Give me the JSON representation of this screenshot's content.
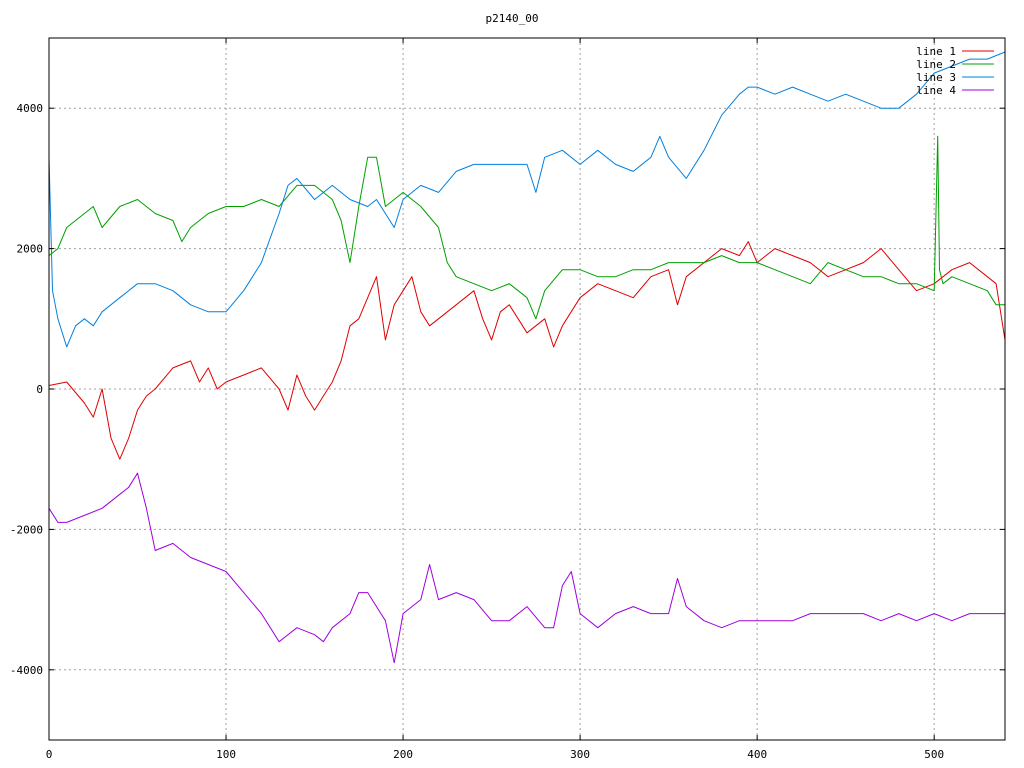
{
  "chart_data": {
    "type": "line",
    "title": "p2140_00",
    "xlabel": "",
    "ylabel": "",
    "xlim": [
      0,
      540
    ],
    "ylim": [
      -5000,
      5000
    ],
    "xticks": [
      0,
      100,
      200,
      300,
      400,
      500
    ],
    "xtick_labels": [
      "0",
      "100",
      "200",
      "300",
      "400",
      "500"
    ],
    "yticks": [
      -4000,
      -2000,
      0,
      2000,
      4000
    ],
    "ytick_labels": [
      "-4000",
      "-2000",
      "0",
      "2000",
      "4000"
    ],
    "grid": true,
    "legend_position": "top-right",
    "series": [
      {
        "name": "line 1",
        "color": "#e00000",
        "x": [
          0,
          10,
          20,
          25,
          30,
          35,
          40,
          45,
          50,
          55,
          60,
          70,
          80,
          85,
          90,
          95,
          100,
          110,
          120,
          130,
          135,
          140,
          145,
          150,
          155,
          160,
          165,
          170,
          175,
          180,
          185,
          190,
          195,
          200,
          205,
          210,
          215,
          220,
          230,
          240,
          245,
          250,
          255,
          260,
          270,
          280,
          285,
          290,
          300,
          310,
          320,
          330,
          340,
          350,
          355,
          360,
          370,
          380,
          390,
          395,
          400,
          410,
          420,
          430,
          440,
          450,
          460,
          470,
          480,
          490,
          500,
          510,
          520,
          530,
          535,
          540
        ],
        "y": [
          50,
          100,
          -200,
          -400,
          0,
          -700,
          -1000,
          -700,
          -300,
          -100,
          0,
          300,
          400,
          100,
          300,
          0,
          100,
          200,
          300,
          0,
          -300,
          200,
          -100,
          -300,
          -100,
          100,
          400,
          900,
          1000,
          1300,
          1600,
          700,
          1200,
          1400,
          1600,
          1100,
          900,
          1000,
          1200,
          1400,
          1000,
          700,
          1100,
          1200,
          800,
          1000,
          600,
          900,
          1300,
          1500,
          1400,
          1300,
          1600,
          1700,
          1200,
          1600,
          1800,
          2000,
          1900,
          2100,
          1800,
          2000,
          1900,
          1800,
          1600,
          1700,
          1800,
          2000,
          1700,
          1400,
          1500,
          1700,
          1800,
          1600,
          1500,
          700
        ]
      },
      {
        "name": "line 2",
        "color": "#00a000",
        "x": [
          0,
          5,
          10,
          15,
          20,
          25,
          30,
          40,
          50,
          60,
          70,
          75,
          80,
          90,
          100,
          110,
          120,
          130,
          140,
          150,
          160,
          165,
          170,
          175,
          180,
          185,
          190,
          195,
          200,
          210,
          220,
          225,
          230,
          240,
          250,
          260,
          270,
          275,
          280,
          290,
          300,
          310,
          320,
          330,
          340,
          350,
          360,
          370,
          380,
          390,
          400,
          410,
          420,
          430,
          440,
          450,
          460,
          470,
          480,
          490,
          500,
          502,
          503,
          505,
          510,
          520,
          530,
          535,
          540
        ],
        "y": [
          1900,
          2000,
          2300,
          2400,
          2500,
          2600,
          2300,
          2600,
          2700,
          2500,
          2400,
          2100,
          2300,
          2500,
          2600,
          2600,
          2700,
          2600,
          2900,
          2900,
          2700,
          2400,
          1800,
          2600,
          3300,
          3300,
          2600,
          2700,
          2800,
          2600,
          2300,
          1800,
          1600,
          1500,
          1400,
          1500,
          1300,
          1000,
          1400,
          1700,
          1700,
          1600,
          1600,
          1700,
          1700,
          1800,
          1800,
          1800,
          1900,
          1800,
          1800,
          1700,
          1600,
          1500,
          1800,
          1700,
          1600,
          1600,
          1500,
          1500,
          1400,
          3600,
          1700,
          1500,
          1600,
          1500,
          1400,
          1200,
          1200
        ]
      },
      {
        "name": "line 3",
        "color": "#0080e0",
        "x": [
          0,
          2,
          5,
          10,
          15,
          20,
          25,
          30,
          40,
          50,
          60,
          70,
          80,
          90,
          100,
          110,
          120,
          130,
          135,
          140,
          150,
          160,
          170,
          180,
          185,
          190,
          195,
          200,
          210,
          220,
          230,
          240,
          250,
          260,
          270,
          275,
          280,
          290,
          300,
          310,
          320,
          330,
          340,
          345,
          350,
          360,
          370,
          380,
          390,
          395,
          400,
          410,
          420,
          430,
          440,
          450,
          460,
          470,
          480,
          490,
          500,
          510,
          520,
          530,
          540
        ],
        "y": [
          3300,
          1400,
          1000,
          600,
          900,
          1000,
          900,
          1100,
          1300,
          1500,
          1500,
          1400,
          1200,
          1100,
          1100,
          1400,
          1800,
          2500,
          2900,
          3000,
          2700,
          2900,
          2700,
          2600,
          2700,
          2500,
          2300,
          2700,
          2900,
          2800,
          3100,
          3200,
          3200,
          3200,
          3200,
          2800,
          3300,
          3400,
          3200,
          3400,
          3200,
          3100,
          3300,
          3600,
          3300,
          3000,
          3400,
          3900,
          4200,
          4300,
          4300,
          4200,
          4300,
          4200,
          4100,
          4200,
          4100,
          4000,
          4000,
          4200,
          4500,
          4600,
          4700,
          4700,
          4800
        ]
      },
      {
        "name": "line 4",
        "color": "#a000e0",
        "x": [
          0,
          5,
          10,
          20,
          30,
          40,
          45,
          50,
          55,
          60,
          70,
          80,
          90,
          100,
          110,
          120,
          125,
          130,
          140,
          150,
          155,
          160,
          170,
          175,
          180,
          190,
          195,
          200,
          210,
          215,
          220,
          230,
          240,
          250,
          260,
          270,
          280,
          285,
          290,
          295,
          300,
          310,
          320,
          330,
          340,
          350,
          355,
          360,
          370,
          380,
          390,
          400,
          410,
          420,
          430,
          440,
          450,
          460,
          470,
          480,
          490,
          500,
          510,
          520,
          530,
          540
        ],
        "y": [
          -1700,
          -1900,
          -1900,
          -1800,
          -1700,
          -1500,
          -1400,
          -1200,
          -1700,
          -2300,
          -2200,
          -2400,
          -2500,
          -2600,
          -2900,
          -3200,
          -3400,
          -3600,
          -3400,
          -3500,
          -3600,
          -3400,
          -3200,
          -2900,
          -2900,
          -3300,
          -3900,
          -3200,
          -3000,
          -2500,
          -3000,
          -2900,
          -3000,
          -3300,
          -3300,
          -3100,
          -3400,
          -3400,
          -2800,
          -2600,
          -3200,
          -3400,
          -3200,
          -3100,
          -3200,
          -3200,
          -2700,
          -3100,
          -3300,
          -3400,
          -3300,
          -3300,
          -3300,
          -3300,
          -3200,
          -3200,
          -3200,
          -3200,
          -3300,
          -3200,
          -3300,
          -3200,
          -3300,
          -3200,
          -3200,
          -3200
        ]
      }
    ]
  }
}
